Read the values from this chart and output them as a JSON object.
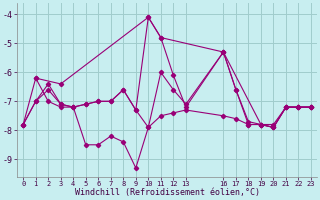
{
  "background_color": "#c8eef0",
  "grid_color": "#a0cccc",
  "line_color": "#990077",
  "xlabel": "Windchill (Refroidissement éolien,°C)",
  "xlim": [
    -0.5,
    23.5
  ],
  "ylim": [
    -9.6,
    -3.6
  ],
  "yticks": [
    -9,
    -8,
    -7,
    -6,
    -5,
    -4
  ],
  "line1_x": [
    0,
    1,
    2,
    3,
    4,
    5,
    6,
    7,
    8,
    9,
    10,
    11,
    12,
    13,
    16,
    17,
    18,
    19,
    20,
    21,
    22,
    23
  ],
  "line1_y": [
    -7.8,
    -6.2,
    -7.0,
    -7.2,
    -7.2,
    -8.5,
    -8.5,
    -8.2,
    -8.4,
    -9.3,
    -7.9,
    -6.0,
    -6.6,
    -7.1,
    -5.3,
    -6.6,
    -7.7,
    -7.8,
    -7.8,
    -7.2,
    -7.2,
    -7.2
  ],
  "line2_x": [
    0,
    1,
    2,
    3,
    4,
    5,
    6,
    7,
    8,
    9,
    10,
    11,
    12,
    13,
    16,
    17,
    18,
    19,
    20,
    21,
    22,
    23
  ],
  "line2_y": [
    -7.8,
    -7.0,
    -6.4,
    -7.1,
    -7.2,
    -7.1,
    -7.0,
    -7.0,
    -6.6,
    -7.3,
    -4.1,
    -4.8,
    -6.1,
    -7.2,
    -5.3,
    -6.6,
    -7.8,
    -7.8,
    -7.9,
    -7.2,
    -7.2,
    -7.2
  ],
  "line3_x": [
    0,
    1,
    2,
    3,
    4,
    5,
    6,
    7,
    8,
    9,
    10,
    11,
    12,
    13,
    16,
    17,
    18,
    19,
    20,
    21,
    22,
    23
  ],
  "line3_y": [
    -7.8,
    -7.0,
    -6.6,
    -7.1,
    -7.2,
    -7.1,
    -7.0,
    -7.0,
    -6.6,
    -7.3,
    -7.9,
    -7.5,
    -7.4,
    -7.3,
    -7.5,
    -7.6,
    -7.8,
    -7.8,
    -7.9,
    -7.2,
    -7.2,
    -7.2
  ],
  "line4_x": [
    1,
    3,
    10,
    11,
    16,
    19,
    20,
    21,
    22,
    23
  ],
  "line4_y": [
    -6.2,
    -6.4,
    -4.1,
    -4.8,
    -5.3,
    -7.8,
    -7.9,
    -7.2,
    -7.2,
    -7.2
  ]
}
